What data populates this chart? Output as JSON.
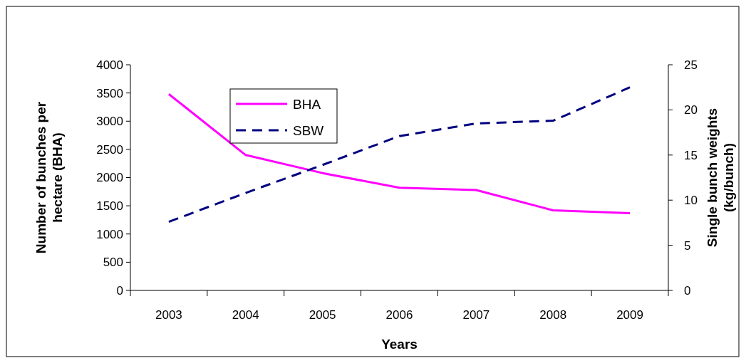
{
  "chart_data": {
    "type": "line",
    "xlabel": "Years",
    "ylabel": "Number of bunches per hectare (BHA)",
    "y2label": "Single bunch weights (kg/bunch)",
    "categories": [
      "2003",
      "2004",
      "2005",
      "2006",
      "2007",
      "2008",
      "2009"
    ],
    "series": [
      {
        "name": "BHA",
        "color": "#ff00ff",
        "line_style": "solid",
        "values": [
          3480,
          2400,
          2080,
          1820,
          1780,
          1420,
          1370
        ]
      },
      {
        "name": "SBW",
        "color": "#000080",
        "line_style": "dashed",
        "axis": "y2",
        "values": [
          7.6,
          10.8,
          13.9,
          17.1,
          18.5,
          18.8,
          22.5
        ]
      }
    ],
    "ylim": [
      0,
      4000
    ],
    "yticks": [
      0,
      500,
      1000,
      1500,
      2000,
      2500,
      3000,
      3500,
      4000
    ],
    "y2lim": [
      0,
      25
    ],
    "y2ticks": [
      0,
      5,
      10,
      15,
      20,
      25
    ],
    "legend": "top left",
    "grid": false
  }
}
